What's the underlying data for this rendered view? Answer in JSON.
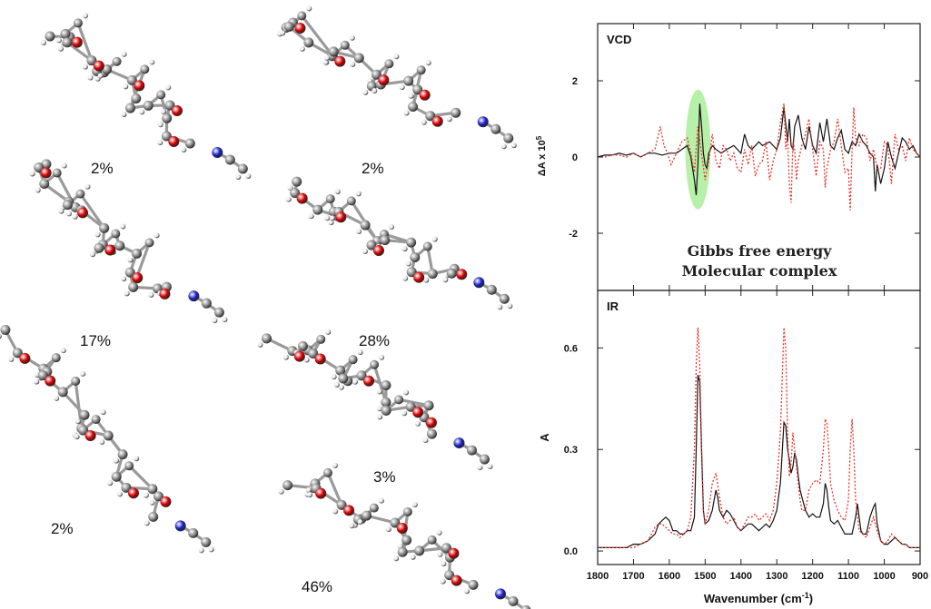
{
  "colors": {
    "experimental": "#111111",
    "calculated": "#e8332a",
    "highlight": "#b7f0a8",
    "oxygen": "#d40000",
    "nitrogen": "#1a22c8",
    "carbon": "#8c8c8c",
    "hydrogen": "#e6e6e6"
  },
  "conformers": [
    {
      "label": "2%"
    },
    {
      "label": "2%"
    },
    {
      "label": "17%"
    },
    {
      "label": "28%"
    },
    {
      "label": "2%"
    },
    {
      "label": "3%"
    },
    {
      "label": "46%"
    }
  ],
  "chart_data": [
    {
      "type": "line",
      "panel_label": "VCD",
      "ylabel": "ΔA x 10",
      "ylabel_sup": "5",
      "xlim": [
        1800,
        900
      ],
      "ylim": [
        -3.5,
        3.5
      ],
      "yticks": [
        "2",
        "0",
        "-2"
      ],
      "yticks_values": [
        2,
        0,
        -2
      ],
      "annotation_line1": "Gibbs free energy",
      "annotation_line2": "Molecular complex",
      "highlight_x": [
        1555,
        1485
      ],
      "series": [
        {
          "style": "solid",
          "x": [
            1800,
            1780,
            1760,
            1740,
            1720,
            1700,
            1680,
            1660,
            1640,
            1620,
            1600,
            1580,
            1565,
            1550,
            1540,
            1530,
            1525,
            1520,
            1515,
            1510,
            1505,
            1500,
            1495,
            1490,
            1480,
            1470,
            1455,
            1440,
            1420,
            1400,
            1390,
            1380,
            1370,
            1360,
            1350,
            1340,
            1320,
            1300,
            1290,
            1280,
            1270,
            1265,
            1260,
            1255,
            1250,
            1240,
            1230,
            1220,
            1210,
            1200,
            1190,
            1180,
            1170,
            1160,
            1150,
            1140,
            1130,
            1120,
            1110,
            1100,
            1090,
            1080,
            1070,
            1060,
            1050,
            1040,
            1030,
            1025,
            1020,
            1010,
            1000,
            990,
            980,
            970,
            960,
            950,
            940,
            930,
            920,
            910,
            900
          ],
          "y": [
            0,
            0.05,
            0.05,
            0.1,
            0.05,
            0.1,
            0,
            0.1,
            0.1,
            0.05,
            0.1,
            0.1,
            0.2,
            0.3,
            0,
            -0.6,
            -1,
            -0.2,
            1.4,
            0.8,
            0.1,
            -0.2,
            -0.3,
            0.1,
            0.3,
            0.2,
            0.1,
            0.2,
            0.3,
            0.1,
            0.6,
            0.3,
            0.2,
            0.3,
            0.4,
            0.3,
            0.4,
            0.2,
            0.5,
            1.3,
            0.4,
            1,
            0.3,
            0.2,
            0.8,
            1.1,
            0.5,
            0.2,
            0.8,
            0.3,
            0.1,
            0.9,
            0.4,
            1,
            0.3,
            0.2,
            0.5,
            0.7,
            0.2,
            0.1,
            0.4,
            0.3,
            0.6,
            0.4,
            0.3,
            0.1,
            0,
            -0.9,
            -0.2,
            -0.7,
            -0.3,
            0.4,
            0,
            -0.3,
            0.1,
            0.5,
            0.4,
            0.2,
            0.3,
            0.1,
            0
          ]
        },
        {
          "style": "dotted",
          "x": [
            1800,
            1780,
            1760,
            1740,
            1720,
            1700,
            1680,
            1660,
            1640,
            1625,
            1615,
            1605,
            1595,
            1580,
            1565,
            1550,
            1540,
            1530,
            1520,
            1510,
            1500,
            1490,
            1480,
            1470,
            1460,
            1450,
            1440,
            1430,
            1420,
            1410,
            1400,
            1390,
            1380,
            1370,
            1360,
            1350,
            1340,
            1330,
            1320,
            1310,
            1300,
            1290,
            1280,
            1275,
            1270,
            1265,
            1260,
            1255,
            1250,
            1245,
            1240,
            1230,
            1220,
            1210,
            1200,
            1190,
            1180,
            1170,
            1165,
            1160,
            1150,
            1140,
            1130,
            1120,
            1110,
            1100,
            1095,
            1090,
            1085,
            1080,
            1070,
            1060,
            1050,
            1040,
            1030,
            1020,
            1010,
            1000,
            990,
            980,
            970,
            960,
            950,
            940,
            930,
            920,
            910,
            900
          ],
          "y": [
            0,
            0,
            0.05,
            0.05,
            0,
            0.1,
            0,
            0.1,
            0.2,
            0.8,
            0.3,
            0.1,
            -0.2,
            0.1,
            0.4,
            0.5,
            0.1,
            -0.4,
            0.8,
            0.1,
            -0.6,
            -0.1,
            0.6,
            -0.1,
            -0.3,
            0.3,
            0.2,
            -0.1,
            0.1,
            -0.3,
            -0.4,
            0.2,
            -0.2,
            0.3,
            -0.5,
            -0.2,
            -0.1,
            0.4,
            -0.6,
            -0.1,
            0.2,
            0.9,
            1.4,
            0.2,
            0.6,
            -0.7,
            -1.2,
            0.4,
            0.2,
            -0.6,
            -0.1,
            0.3,
            0.6,
            1,
            0.2,
            -0.5,
            0.4,
            0.2,
            -0.8,
            -0.3,
            0.2,
            0.4,
            1,
            0.3,
            -0.4,
            -0.3,
            -1.4,
            0.2,
            1.3,
            0.5,
            0.3,
            0.6,
            0.5,
            -0.1,
            0.2,
            -0.3,
            -0.3,
            0.4,
            0.3,
            -0.7,
            0.6,
            0.2,
            0.3,
            -0.1,
            0.5,
            0.2,
            0.1,
            0
          ]
        }
      ]
    },
    {
      "type": "line",
      "panel_label": "IR",
      "ylabel": "A",
      "xlabel": "Wavenumber (cm",
      "xlabel_sup": "-1",
      "xlabel_end": ")",
      "xlim": [
        1800,
        900
      ],
      "ylim": [
        -0.04,
        0.77
      ],
      "xticks": [
        "1800",
        "1700",
        "1600",
        "1500",
        "1400",
        "1300",
        "1200",
        "1100",
        "1000",
        "900"
      ],
      "xticks_values": [
        1800,
        1700,
        1600,
        1500,
        1400,
        1300,
        1200,
        1100,
        1000,
        900
      ],
      "yticks": [
        "0.6",
        "0.3",
        "0.0"
      ],
      "yticks_values": [
        0.6,
        0.3,
        0.0
      ],
      "series": [
        {
          "style": "solid",
          "x": [
            1800,
            1760,
            1720,
            1700,
            1680,
            1660,
            1640,
            1630,
            1620,
            1610,
            1600,
            1590,
            1580,
            1570,
            1560,
            1550,
            1540,
            1530,
            1525,
            1520,
            1515,
            1510,
            1505,
            1500,
            1490,
            1480,
            1470,
            1465,
            1460,
            1450,
            1440,
            1430,
            1420,
            1410,
            1400,
            1390,
            1380,
            1370,
            1360,
            1350,
            1340,
            1330,
            1320,
            1310,
            1300,
            1290,
            1280,
            1275,
            1270,
            1265,
            1260,
            1255,
            1250,
            1245,
            1240,
            1235,
            1230,
            1220,
            1210,
            1200,
            1190,
            1180,
            1170,
            1165,
            1160,
            1155,
            1150,
            1140,
            1130,
            1120,
            1110,
            1100,
            1090,
            1080,
            1075,
            1070,
            1065,
            1060,
            1050,
            1040,
            1030,
            1025,
            1020,
            1010,
            1000,
            990,
            980,
            970,
            960,
            950,
            940,
            930,
            920,
            910,
            900
          ],
          "y": [
            0.01,
            0.01,
            0.01,
            0.02,
            0.02,
            0.03,
            0.05,
            0.08,
            0.09,
            0.1,
            0.09,
            0.06,
            0.06,
            0.05,
            0.05,
            0.06,
            0.06,
            0.1,
            0.3,
            0.52,
            0.5,
            0.3,
            0.12,
            0.08,
            0.09,
            0.12,
            0.18,
            0.16,
            0.12,
            0.1,
            0.12,
            0.11,
            0.09,
            0.07,
            0.06,
            0.07,
            0.08,
            0.08,
            0.07,
            0.06,
            0.07,
            0.08,
            0.07,
            0.09,
            0.12,
            0.2,
            0.38,
            0.37,
            0.3,
            0.27,
            0.23,
            0.25,
            0.29,
            0.27,
            0.22,
            0.18,
            0.16,
            0.12,
            0.1,
            0.11,
            0.1,
            0.1,
            0.14,
            0.2,
            0.18,
            0.13,
            0.09,
            0.08,
            0.09,
            0.07,
            0.05,
            0.05,
            0.05,
            0.1,
            0.14,
            0.1,
            0.06,
            0.05,
            0.05,
            0.1,
            0.13,
            0.14,
            0.08,
            0.03,
            0.02,
            0.02,
            0.03,
            0.04,
            0.03,
            0.02,
            0.02,
            0.01,
            0.01,
            0.01,
            0.01
          ]
        },
        {
          "style": "dotted",
          "x": [
            1800,
            1760,
            1720,
            1700,
            1680,
            1660,
            1650,
            1640,
            1630,
            1620,
            1610,
            1600,
            1590,
            1580,
            1570,
            1560,
            1550,
            1540,
            1530,
            1525,
            1520,
            1515,
            1510,
            1505,
            1500,
            1490,
            1480,
            1470,
            1460,
            1450,
            1440,
            1430,
            1420,
            1410,
            1400,
            1390,
            1380,
            1370,
            1360,
            1350,
            1340,
            1330,
            1320,
            1310,
            1300,
            1290,
            1280,
            1275,
            1270,
            1265,
            1260,
            1255,
            1250,
            1240,
            1235,
            1230,
            1220,
            1210,
            1200,
            1190,
            1180,
            1170,
            1165,
            1160,
            1155,
            1150,
            1140,
            1130,
            1120,
            1110,
            1100,
            1095,
            1090,
            1085,
            1080,
            1070,
            1060,
            1050,
            1040,
            1030,
            1020,
            1010,
            1000,
            990,
            980,
            970,
            960,
            950,
            940,
            930,
            920,
            910,
            900
          ],
          "y": [
            0.01,
            0.01,
            0.01,
            0.01,
            0.02,
            0.03,
            0.05,
            0.07,
            0.08,
            0.08,
            0.07,
            0.06,
            0.05,
            0.05,
            0.04,
            0.05,
            0.06,
            0.1,
            0.3,
            0.55,
            0.66,
            0.55,
            0.3,
            0.12,
            0.08,
            0.12,
            0.2,
            0.23,
            0.16,
            0.1,
            0.08,
            0.09,
            0.1,
            0.07,
            0.06,
            0.08,
            0.1,
            0.1,
            0.11,
            0.09,
            0.1,
            0.11,
            0.09,
            0.12,
            0.2,
            0.35,
            0.66,
            0.6,
            0.35,
            0.22,
            0.26,
            0.35,
            0.3,
            0.2,
            0.15,
            0.12,
            0.12,
            0.18,
            0.2,
            0.21,
            0.2,
            0.3,
            0.39,
            0.38,
            0.3,
            0.2,
            0.15,
            0.12,
            0.1,
            0.09,
            0.15,
            0.3,
            0.39,
            0.3,
            0.15,
            0.06,
            0.05,
            0.04,
            0.07,
            0.1,
            0.06,
            0.03,
            0.02,
            0.03,
            0.05,
            0.04,
            0.03,
            0.02,
            0.02,
            0.01,
            0.01,
            0.01,
            0.01
          ]
        }
      ]
    }
  ]
}
